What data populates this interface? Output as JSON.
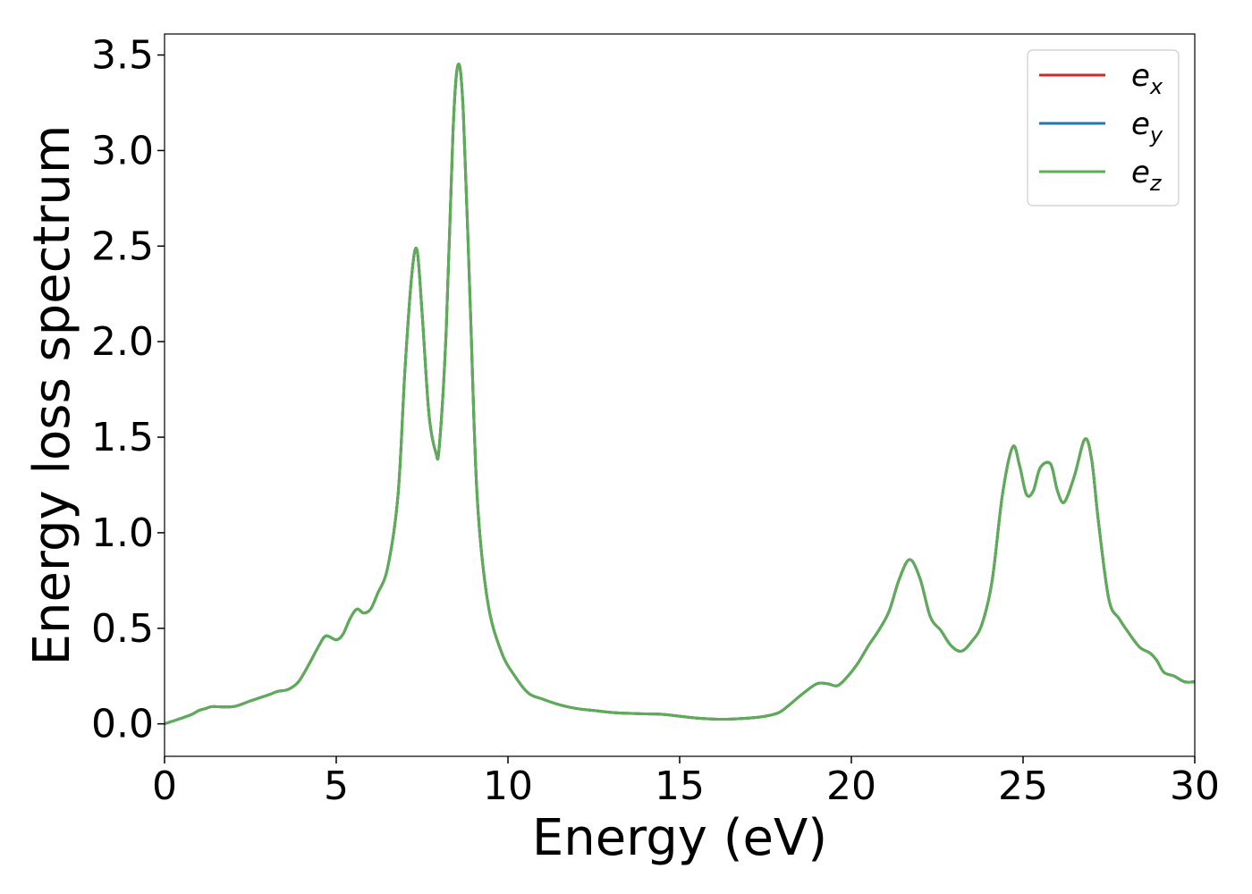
{
  "chart_data": {
    "type": "line",
    "xlabel": "Energy (eV)",
    "ylabel": "Energy loss spectrum",
    "xlim": [
      0,
      30
    ],
    "ylim": [
      -0.17,
      3.61
    ],
    "x_ticks": [
      0,
      5,
      10,
      15,
      20,
      25,
      30
    ],
    "x_tick_labels": [
      "0",
      "5",
      "10",
      "15",
      "20",
      "25",
      "30"
    ],
    "y_ticks": [
      0.0,
      0.5,
      1.0,
      1.5,
      2.0,
      2.5,
      3.0,
      3.5
    ],
    "y_tick_labels": [
      "0.0",
      "0.5",
      "1.0",
      "1.5",
      "2.0",
      "2.5",
      "3.0",
      "3.5"
    ],
    "grid": false,
    "legend_position": "top-right",
    "x": [
      0,
      0.5,
      0.8,
      1.0,
      1.2,
      1.4,
      2.0,
      2.5,
      3.0,
      3.3,
      3.6,
      3.9,
      4.2,
      4.5,
      4.7,
      5.0,
      5.2,
      5.4,
      5.6,
      5.8,
      6.0,
      6.2,
      6.5,
      6.8,
      7.0,
      7.2,
      7.35,
      7.5,
      7.7,
      7.9,
      8.0,
      8.2,
      8.4,
      8.55,
      8.7,
      8.9,
      9.1,
      9.4,
      9.8,
      10.2,
      10.6,
      11.0,
      11.5,
      12.0,
      12.5,
      13.0,
      13.5,
      14.0,
      14.5,
      15.0,
      15.5,
      16.0,
      16.5,
      17.0,
      17.5,
      17.9,
      18.2,
      18.6,
      19.0,
      19.3,
      19.6,
      19.9,
      20.2,
      20.5,
      20.8,
      21.1,
      21.4,
      21.7,
      22.0,
      22.3,
      22.6,
      22.9,
      23.2,
      23.5,
      23.8,
      24.1,
      24.4,
      24.7,
      24.9,
      25.1,
      25.3,
      25.5,
      25.8,
      26.0,
      26.2,
      26.5,
      26.8,
      27.0,
      27.2,
      27.5,
      27.8,
      28.1,
      28.4,
      28.7,
      28.9,
      29.1,
      29.4,
      29.7,
      30.0
    ],
    "series": [
      {
        "name": "e_x",
        "color": "#d62728",
        "values": [
          0.0,
          0.03,
          0.05,
          0.07,
          0.08,
          0.09,
          0.09,
          0.12,
          0.15,
          0.17,
          0.18,
          0.22,
          0.31,
          0.41,
          0.46,
          0.44,
          0.47,
          0.55,
          0.6,
          0.58,
          0.6,
          0.68,
          0.82,
          1.2,
          1.85,
          2.35,
          2.48,
          2.15,
          1.62,
          1.42,
          1.45,
          2.05,
          3.1,
          3.45,
          3.2,
          2.2,
          1.2,
          0.65,
          0.38,
          0.25,
          0.16,
          0.13,
          0.1,
          0.08,
          0.07,
          0.06,
          0.055,
          0.052,
          0.05,
          0.04,
          0.03,
          0.025,
          0.025,
          0.03,
          0.04,
          0.06,
          0.1,
          0.16,
          0.21,
          0.21,
          0.2,
          0.25,
          0.32,
          0.41,
          0.49,
          0.59,
          0.76,
          0.86,
          0.76,
          0.56,
          0.49,
          0.41,
          0.38,
          0.43,
          0.52,
          0.75,
          1.2,
          1.45,
          1.35,
          1.2,
          1.22,
          1.34,
          1.36,
          1.22,
          1.16,
          1.3,
          1.49,
          1.38,
          1.05,
          0.65,
          0.55,
          0.47,
          0.4,
          0.37,
          0.33,
          0.27,
          0.25,
          0.22,
          0.22
        ]
      },
      {
        "name": "e_y",
        "color": "#1f77b4",
        "values": [
          0.0,
          0.03,
          0.05,
          0.07,
          0.08,
          0.09,
          0.09,
          0.12,
          0.15,
          0.17,
          0.18,
          0.22,
          0.31,
          0.41,
          0.46,
          0.44,
          0.47,
          0.55,
          0.6,
          0.58,
          0.6,
          0.68,
          0.82,
          1.2,
          1.85,
          2.35,
          2.48,
          2.15,
          1.62,
          1.42,
          1.45,
          2.05,
          3.1,
          3.45,
          3.2,
          2.2,
          1.2,
          0.65,
          0.38,
          0.25,
          0.16,
          0.13,
          0.1,
          0.08,
          0.07,
          0.06,
          0.055,
          0.052,
          0.05,
          0.04,
          0.03,
          0.025,
          0.025,
          0.03,
          0.04,
          0.06,
          0.1,
          0.16,
          0.21,
          0.21,
          0.2,
          0.25,
          0.32,
          0.41,
          0.49,
          0.59,
          0.76,
          0.86,
          0.76,
          0.56,
          0.49,
          0.41,
          0.38,
          0.43,
          0.52,
          0.75,
          1.2,
          1.45,
          1.35,
          1.2,
          1.22,
          1.34,
          1.36,
          1.22,
          1.16,
          1.3,
          1.49,
          1.38,
          1.05,
          0.65,
          0.55,
          0.47,
          0.4,
          0.37,
          0.33,
          0.27,
          0.25,
          0.22,
          0.22
        ]
      },
      {
        "name": "e_z",
        "color": "#5cad55",
        "values": [
          0.0,
          0.03,
          0.05,
          0.07,
          0.08,
          0.09,
          0.09,
          0.12,
          0.15,
          0.17,
          0.18,
          0.22,
          0.31,
          0.41,
          0.46,
          0.44,
          0.47,
          0.55,
          0.6,
          0.58,
          0.6,
          0.68,
          0.82,
          1.2,
          1.85,
          2.35,
          2.48,
          2.15,
          1.62,
          1.42,
          1.45,
          2.05,
          3.1,
          3.45,
          3.2,
          2.2,
          1.2,
          0.65,
          0.38,
          0.25,
          0.16,
          0.13,
          0.1,
          0.08,
          0.07,
          0.06,
          0.055,
          0.052,
          0.05,
          0.04,
          0.03,
          0.025,
          0.025,
          0.03,
          0.04,
          0.06,
          0.1,
          0.16,
          0.21,
          0.21,
          0.2,
          0.25,
          0.32,
          0.41,
          0.49,
          0.59,
          0.76,
          0.86,
          0.76,
          0.56,
          0.49,
          0.41,
          0.38,
          0.43,
          0.52,
          0.75,
          1.2,
          1.45,
          1.35,
          1.2,
          1.22,
          1.34,
          1.36,
          1.22,
          1.16,
          1.3,
          1.49,
          1.38,
          1.05,
          0.65,
          0.55,
          0.47,
          0.4,
          0.37,
          0.33,
          0.27,
          0.25,
          0.22,
          0.22
        ]
      }
    ],
    "legend": [
      {
        "base": "e",
        "sub": "x",
        "color": "#d62728"
      },
      {
        "base": "e",
        "sub": "y",
        "color": "#1f77b4"
      },
      {
        "base": "e",
        "sub": "z",
        "color": "#5cad55"
      }
    ]
  }
}
